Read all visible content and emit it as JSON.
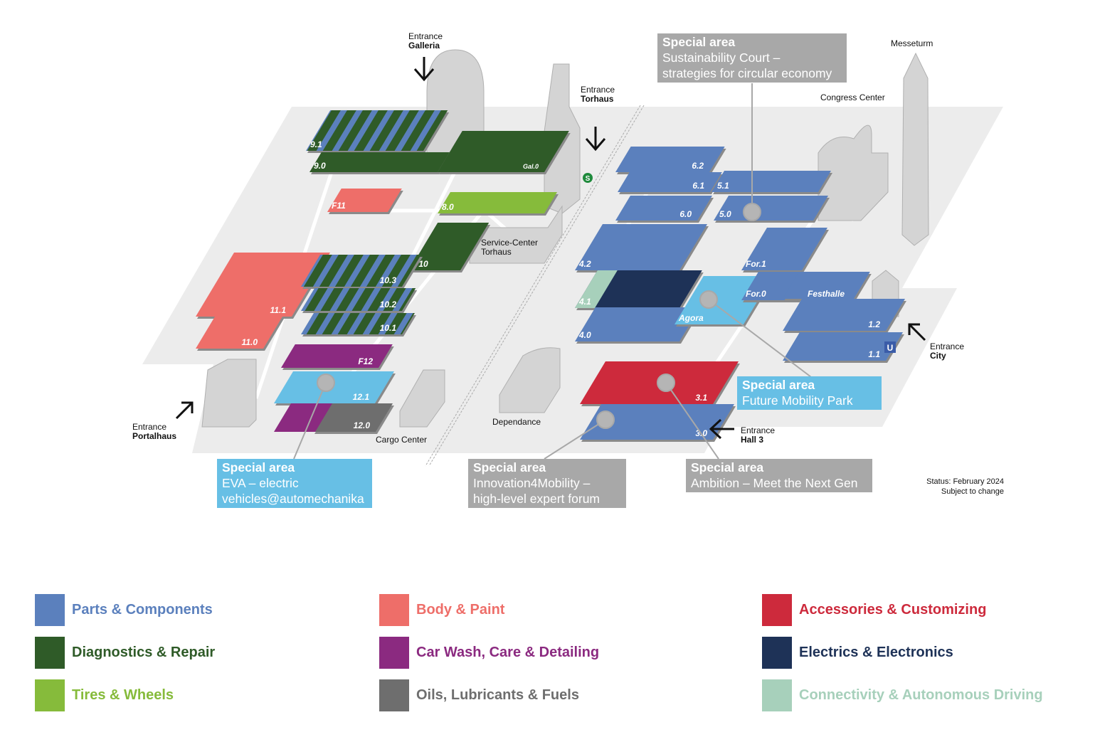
{
  "colors": {
    "parts": "#5b80bd",
    "diagnostics": "#2f5b28",
    "tires": "#86bb3b",
    "body": "#ee6e69",
    "carwash": "#8b2a80",
    "oils": "#6e6e6e",
    "accessories": "#cd2a3c",
    "electrics": "#1e3257",
    "connectivity": "#a7d0bb",
    "special_grey": "#a8a8a8",
    "special_blue": "#67bfe5",
    "ground": "#ececec",
    "building": "#d4d4d4"
  },
  "halls": {
    "h91": "9.1",
    "h90": "9.0",
    "gal0": "Gal.0",
    "h80": "8.0",
    "f11": "F11",
    "f10": "F10",
    "h111": "11.1",
    "h110": "11.0",
    "h103": "10.3",
    "h102": "10.2",
    "h101": "10.1",
    "f12": "F12",
    "h121": "12.1",
    "h120": "12.0",
    "h62": "6.2",
    "h61": "6.1",
    "h51": "5.1",
    "h60": "6.0",
    "h50": "5.0",
    "h42": "4.2",
    "h41": "4.1",
    "h40": "4.0",
    "agora": "Agora",
    "for1": "For.1",
    "for0": "For.0",
    "festhalle": "Festhalle",
    "h12": "1.2",
    "h11": "1.1",
    "h31": "3.1",
    "h30": "3.0"
  },
  "places": {
    "entrance_galleria": [
      "Entrance",
      "Galleria"
    ],
    "entrance_torhaus": [
      "Entrance",
      "Torhaus"
    ],
    "entrance_portalhaus": [
      "Entrance",
      "Portalhaus"
    ],
    "entrance_city": [
      "Entrance",
      "City"
    ],
    "entrance_hall3": [
      "Entrance",
      "Hall 3"
    ],
    "messeturm": "Messeturm",
    "congress_center": "Congress Center",
    "service_center": [
      "Service-Center",
      "Torhaus"
    ],
    "cargo_center": "Cargo Center",
    "dependance": "Dependance",
    "s_bahn": "S",
    "u_bahn": "U"
  },
  "special_areas": {
    "sustainability": {
      "title": "Special area",
      "lines": [
        "Sustainability Court –",
        "strategies for circular economy"
      ]
    },
    "future_mobility": {
      "title": "Special area",
      "lines": [
        "Future Mobility Park"
      ]
    },
    "eva": {
      "title": "Special area",
      "lines": [
        "EVA – electric",
        "vehicles@automechanika"
      ]
    },
    "innovation": {
      "title": "Special area",
      "lines": [
        "Innovation4Mobility –",
        "high-level expert forum"
      ]
    },
    "ambition": {
      "title": "Special area",
      "lines": [
        "Ambition – Meet the Next Gen"
      ]
    }
  },
  "status": [
    "Status: February 2024",
    "Subject to change"
  ],
  "legend": [
    {
      "label": "Parts & Components",
      "color": "#5b80bd"
    },
    {
      "label": "Diagnostics & Repair",
      "color": "#2f5b28"
    },
    {
      "label": "Tires & Wheels",
      "color": "#86bb3b"
    },
    {
      "label": "Body & Paint",
      "color": "#ee6e69"
    },
    {
      "label": "Car Wash, Care & Detailing",
      "color": "#8b2a80"
    },
    {
      "label": "Oils, Lubricants & Fuels",
      "color": "#6e6e6e"
    },
    {
      "label": "Accessories & Customizing",
      "color": "#cd2a3c"
    },
    {
      "label": "Electrics & Electronics",
      "color": "#1e3257"
    },
    {
      "label": "Connectivity & Autonomous Driving",
      "color": "#a7d0bb"
    }
  ]
}
